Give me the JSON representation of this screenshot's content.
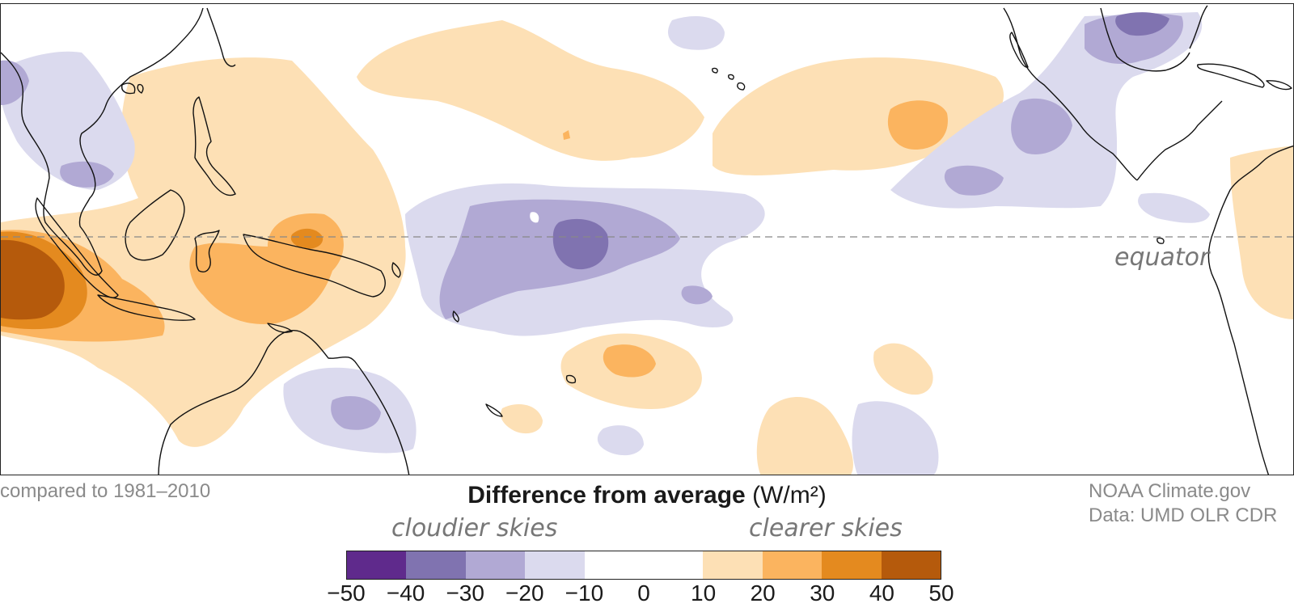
{
  "map": {
    "equator_label": "equator",
    "palette": {
      "cloud_deep": "#5f2a8c",
      "cloud_strong": "#8073b0",
      "cloud_mid": "#b1a9d4",
      "cloud_light": "#dbdaee",
      "clear_light": "#fde0b5",
      "clear_mid": "#fbb45f",
      "clear_strong": "#e48a1f",
      "clear_deep": "#b55a0c",
      "coast": "#111111",
      "equator_line": "#888888"
    }
  },
  "footer": {
    "baseline": "compared to 1981–2010",
    "credit_line1": "NOAA Climate.gov",
    "credit_line2": "Data: UMD OLR CDR"
  },
  "legend": {
    "title": "Difference from average",
    "unit": "(W/m²)",
    "left_label": "cloudier skies",
    "right_label": "clearer skies",
    "bins": [
      "#5f2a8c",
      "#8073b0",
      "#b1a9d4",
      "#dbdaee",
      "#ffffff",
      "#ffffff",
      "#fde0b5",
      "#fbb45f",
      "#e48a1f",
      "#b55a0c"
    ],
    "ticks": [
      "−50",
      "−40",
      "−30",
      "−20",
      "−10",
      "0",
      "10",
      "20",
      "30",
      "40",
      "50"
    ]
  }
}
